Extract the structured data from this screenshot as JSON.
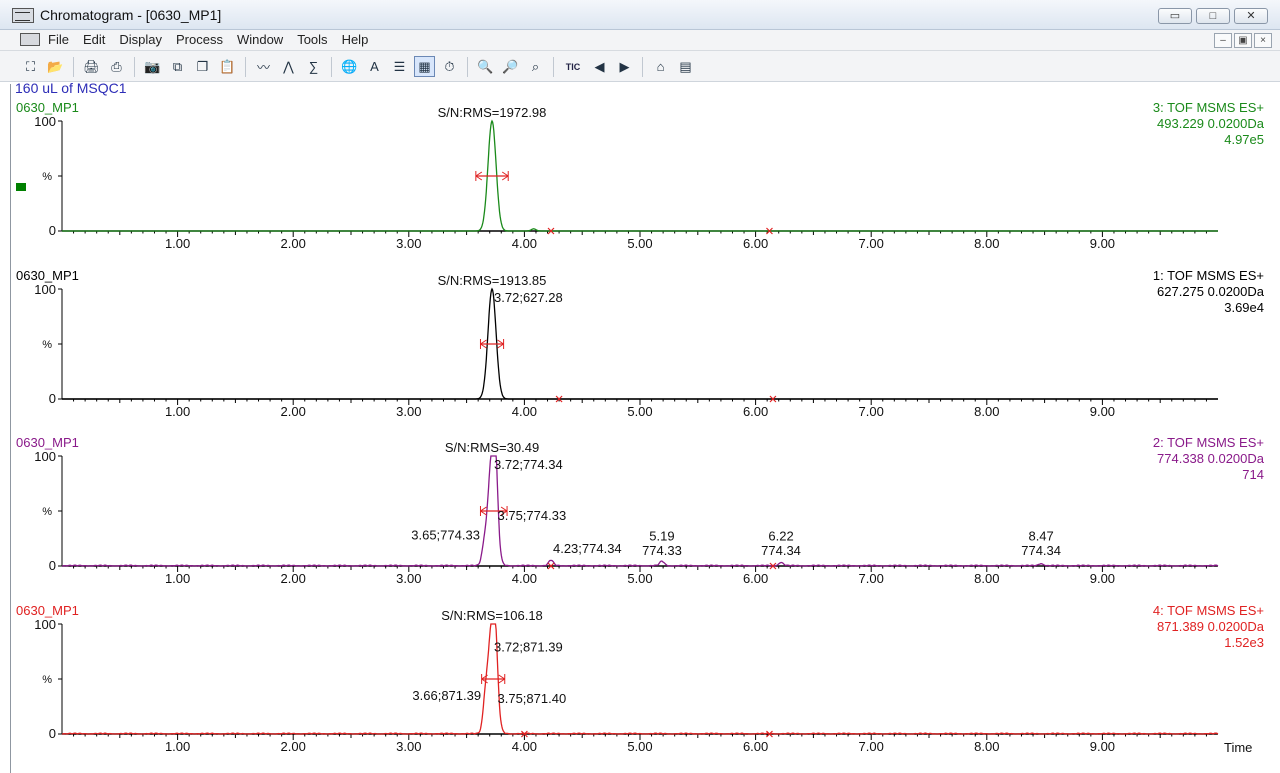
{
  "window": {
    "title": "Chromatogram - [0630_MP1]",
    "minimize_icon": "minimize-icon",
    "maximize_icon": "maximize-icon",
    "close_icon": "close-icon"
  },
  "menu": {
    "items": [
      "File",
      "Edit",
      "Display",
      "Process",
      "Window",
      "Tools",
      "Help"
    ]
  },
  "toolbar": {
    "icons": [
      "fit-icon",
      "open-folder-icon",
      "print-preview-icon",
      "print-icon",
      "camera-icon",
      "copy-icon",
      "paste-icon",
      "clipboard-icon",
      "chromatogram-icon",
      "peaks-icon",
      "integrate-icon",
      "globe-icon",
      "text-icon",
      "header-icon",
      "layout-icon",
      "clock-icon",
      "zoom-in-icon",
      "zoom-out-icon",
      "zoom-reset-icon",
      "tic-icon",
      "back-arrow-icon",
      "forward-arrow-icon",
      "tree-icon",
      "list-icon"
    ],
    "tic_label": "TIC"
  },
  "sample_description": "160 uL of MSQC1",
  "chart_data": {
    "type": "line",
    "xlabel": "Time",
    "xlim": [
      0,
      10
    ],
    "ticks": [
      "1.00",
      "2.00",
      "3.00",
      "4.00",
      "5.00",
      "6.00",
      "7.00",
      "8.00",
      "9.00"
    ],
    "y_ticks": [
      "100",
      "%",
      "0"
    ],
    "panels": [
      {
        "sample": "0630_MP1",
        "channel": "3: TOF MSMS ES+",
        "mass": "493.229 0.0200Da",
        "intensity": "4.97e5",
        "sn": "S/N:RMS=1972.98",
        "color": "#1a8a1a",
        "peak": 3.72,
        "peaks": [
          [
            3.72,
            100
          ],
          [
            4.08,
            2
          ]
        ],
        "integration": {
          "start": 3.58,
          "end": 3.86,
          "y": 50
        },
        "baseline_marks": [
          4.23,
          6.12
        ],
        "labels": []
      },
      {
        "sample": "0630_MP1",
        "channel": "1: TOF MSMS ES+",
        "mass": "627.275 0.0200Da",
        "intensity": "3.69e4",
        "sn": "S/N:RMS=1913.85",
        "color": "#000000",
        "peak": 3.72,
        "peaks": [
          [
            3.72,
            100
          ]
        ],
        "integration": {
          "start": 3.62,
          "end": 3.82,
          "y": 50
        },
        "baseline_marks": [
          4.3,
          6.15
        ],
        "labels": [
          {
            "text": "3.72;627.28",
            "x": 3.72,
            "y": 88
          }
        ]
      },
      {
        "sample": "0630_MP1",
        "channel": "2: TOF MSMS ES+",
        "mass": "774.338 0.0200Da",
        "intensity": "714",
        "sn": "S/N:RMS=30.49",
        "color": "#8a1a8a",
        "peak": 3.72,
        "peaks": [
          [
            3.65,
            12
          ],
          [
            3.72,
            100
          ],
          [
            3.75,
            45
          ],
          [
            4.23,
            5
          ],
          [
            5.19,
            4
          ],
          [
            6.22,
            3
          ],
          [
            8.47,
            2
          ]
        ],
        "integration": {
          "start": 3.62,
          "end": 3.85,
          "y": 50
        },
        "baseline_marks": [
          4.23,
          6.15
        ],
        "labels": [
          {
            "text": "3.72;774.34",
            "x": 3.72,
            "y": 88
          },
          {
            "text": "3.75;774.33",
            "x": 3.75,
            "y": 42
          },
          {
            "text": "3.65;774.33",
            "x": 3.65,
            "y": 24,
            "align": "end"
          },
          {
            "text": "4.23;774.34",
            "x": 4.23,
            "y": 12
          },
          {
            "text": "5.19",
            "x": 5.19,
            "y": 23
          },
          {
            "text": "774.33",
            "x": 5.19,
            "y": 10
          },
          {
            "text": "6.22",
            "x": 6.22,
            "y": 23
          },
          {
            "text": "774.34",
            "x": 6.22,
            "y": 10
          },
          {
            "text": "8.47",
            "x": 8.47,
            "y": 23
          },
          {
            "text": "774.34",
            "x": 8.47,
            "y": 10
          }
        ]
      },
      {
        "sample": "0630_MP1",
        "channel": "4: TOF MSMS ES+",
        "mass": "871.389 0.0200Da",
        "intensity": "1.52e3",
        "sn": "S/N:RMS=106.18",
        "color": "#e02222",
        "peak": 3.72,
        "peaks": [
          [
            3.66,
            20
          ],
          [
            3.72,
            100
          ],
          [
            3.75,
            35
          ]
        ],
        "integration": {
          "start": 3.63,
          "end": 3.83,
          "y": 50
        },
        "baseline_marks": [
          4.0,
          6.12
        ],
        "labels": [
          {
            "text": "3.72;871.39",
            "x": 3.72,
            "y": 75
          },
          {
            "text": "3.75;871.40",
            "x": 3.75,
            "y": 28
          },
          {
            "text": "3.66;871.39",
            "x": 3.66,
            "y": 31,
            "align": "end"
          }
        ]
      }
    ]
  }
}
